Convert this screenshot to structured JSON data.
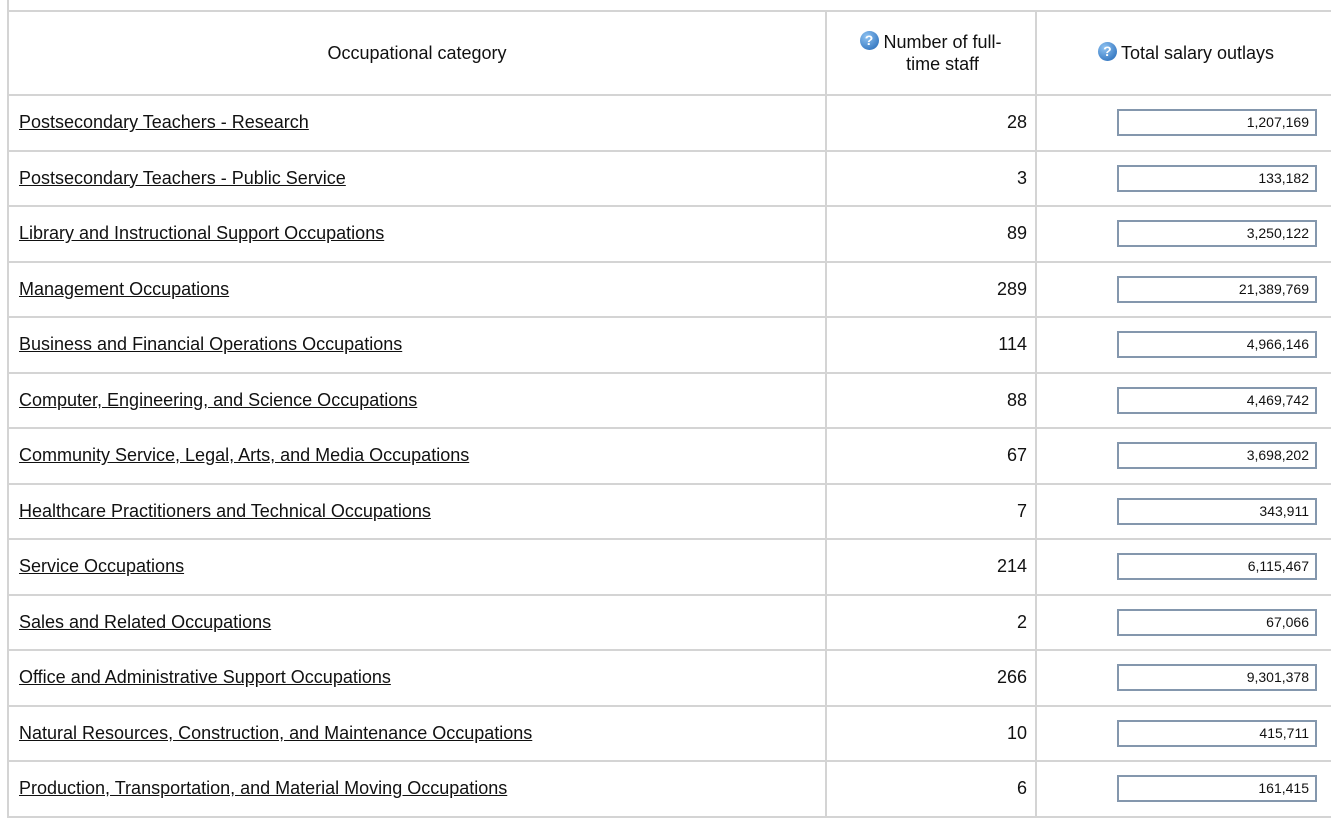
{
  "table": {
    "header": [
      "Occupational category",
      "Number of full-time staff",
      "Total salary outlays"
    ],
    "rows": [
      [
        "Postsecondary Teachers - Research",
        "28",
        "1,207,169"
      ],
      [
        "Postsecondary Teachers - Public Service",
        "3",
        "133,182"
      ],
      [
        "Library and Instructional Support Occupations",
        "89",
        "3,250,122"
      ],
      [
        "Management Occupations",
        "289",
        "21,389,769"
      ],
      [
        "Business and Financial Operations Occupations",
        "114",
        "4,966,146"
      ],
      [
        "Computer, Engineering, and Science Occupations",
        "88",
        "4,469,742"
      ],
      [
        "Community Service, Legal, Arts, and Media Occupations",
        "67",
        "3,698,202"
      ],
      [
        "Healthcare Practitioners and Technical Occupations",
        "7",
        "343,911"
      ],
      [
        "Service Occupations",
        "214",
        "6,115,467"
      ],
      [
        "Sales and Related Occupations",
        "2",
        "67,066"
      ],
      [
        "Office and Administrative Support Occupations",
        "266",
        "9,301,378"
      ],
      [
        "Natural Resources, Construction, and Maintenance Occupations",
        "10",
        "415,711"
      ],
      [
        "Production, Transportation, and Material Moving Occupations",
        "6",
        "161,415"
      ]
    ]
  }
}
